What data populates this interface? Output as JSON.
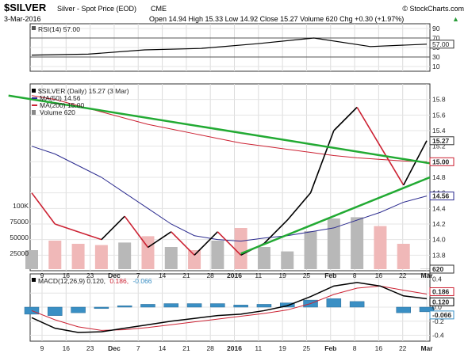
{
  "header": {
    "symbol": "$SILVER",
    "name": "Silver - Spot Price (EOD)",
    "exchange": "CME",
    "source": "© StockCharts.com",
    "date": "3-Mar-2016",
    "quote": "Open 14.94  High 15.33  Low 14.92  Close 15.27  Volume 620  Chg +0.30 (+1.97%)",
    "quote_up_arrow": "▲"
  },
  "chart_data": [
    {
      "type": "line",
      "panel": "rsi",
      "title": "RSI(14) 57.00",
      "ylim": [
        0,
        100
      ],
      "yticks": [
        10,
        30,
        50,
        70,
        90
      ],
      "reference_lines": [
        30,
        70
      ],
      "x": [
        "Dec 1",
        "Dec 15",
        "Jan 4",
        "Jan 19",
        "Feb 1",
        "Feb 12",
        "Feb 22",
        "Mar 3"
      ],
      "series": [
        {
          "name": "RSI(14)",
          "values": [
            34,
            36,
            45,
            48,
            58,
            70,
            52,
            57
          ]
        }
      ],
      "last_value_label": "57.00",
      "colors": {
        "line": "#000000",
        "ref": "#555555"
      }
    },
    {
      "type": "line",
      "panel": "price",
      "title": "$SILVER (Daily) 15.27 (3 Mar)",
      "ylim": [
        13.6,
        16.0
      ],
      "yticks": [
        13.8,
        14.0,
        14.2,
        14.4,
        14.6,
        14.8,
        15.0,
        15.2,
        15.4,
        15.6,
        15.8
      ],
      "legend": [
        {
          "name": "MA(50) 14.56",
          "color": "#2b2b8f"
        },
        {
          "name": "MA(200) 15.00",
          "color": "#cc2233"
        },
        {
          "name": "Volume 620",
          "color": "#888888"
        }
      ],
      "x": [
        "Nov 9",
        "Nov 16",
        "Nov 23",
        "Dec 1",
        "Dec 7",
        "Dec 14",
        "Dec 21",
        "Dec 28",
        "Jan 4",
        "Jan 11",
        "Jan 19",
        "Jan 25",
        "Feb 1",
        "Feb 8",
        "Feb 16",
        "Feb 22",
        "Feb 29",
        "Mar 3"
      ],
      "series": [
        {
          "name": "$SILVER",
          "values": [
            14.6,
            14.2,
            14.1,
            14.0,
            14.3,
            13.9,
            14.1,
            13.8,
            14.1,
            13.8,
            13.95,
            14.25,
            14.6,
            15.4,
            15.7,
            15.2,
            14.7,
            15.27
          ]
        },
        {
          "name": "MA(50)",
          "values": [
            15.2,
            15.1,
            14.95,
            14.8,
            14.6,
            14.4,
            14.2,
            14.05,
            14.0,
            13.98,
            14.02,
            14.05,
            14.1,
            14.15,
            14.25,
            14.35,
            14.48,
            14.56
          ]
        },
        {
          "name": "MA(200)",
          "values": [
            15.85,
            15.8,
            15.72,
            15.64,
            15.56,
            15.48,
            15.42,
            15.36,
            15.3,
            15.24,
            15.2,
            15.16,
            15.12,
            15.08,
            15.05,
            15.03,
            15.01,
            15.0
          ]
        }
      ],
      "volume": [
        30000,
        45000,
        40000,
        38000,
        42000,
        52000,
        35000,
        30000,
        45000,
        65000,
        35000,
        28000,
        60000,
        80000,
        82000,
        68000,
        40000,
        620
      ],
      "volume_ylim": [
        0,
        100000
      ],
      "volume_ticks": [
        "25000",
        "50000",
        "75000",
        "100K"
      ],
      "trendlines": [
        {
          "color": "#22aa33",
          "from": [
            "Jan 11",
            13.82
          ],
          "to": [
            "Mar 3",
            14.8
          ]
        },
        {
          "color": "#22aa33",
          "from": [
            "Feb 12",
            15.85
          ],
          "to": [
            "Mar 3",
            14.98
          ]
        }
      ],
      "value_labels": [
        {
          "text": "15.27",
          "kind": "close",
          "value": 15.27
        },
        {
          "text": "15.00",
          "kind": "ma200",
          "value": 15.0
        },
        {
          "text": "14.56",
          "kind": "ma50",
          "value": 14.56
        },
        {
          "text": "620",
          "kind": "volume",
          "value": 620
        }
      ],
      "colors": {
        "up": "#000000",
        "down": "#cc2233",
        "vol_up": "#b8b8b8",
        "vol_down": "#f0b8b8"
      }
    },
    {
      "type": "line",
      "panel": "macd",
      "title": "MACD(12,26,9) 0.120, 0.186, -0.066",
      "legend": [
        {
          "name": "MACD(12,26,9) 0.120,",
          "color": "#000000"
        },
        {
          "name": "0.186,",
          "color": "#cc2233"
        },
        {
          "name": "-0.066",
          "color": "#3a8fc4"
        }
      ],
      "ylim": [
        -0.45,
        0.45
      ],
      "yticks": [
        -0.4,
        -0.2,
        0.0,
        0.2,
        0.4
      ],
      "x": [
        "Nov 9",
        "Nov 16",
        "Nov 23",
        "Dec 1",
        "Dec 7",
        "Dec 14",
        "Dec 21",
        "Dec 28",
        "Jan 4",
        "Jan 11",
        "Jan 19",
        "Jan 25",
        "Feb 1",
        "Feb 8",
        "Feb 16",
        "Feb 22",
        "Feb 29",
        "Mar 3"
      ],
      "series": [
        {
          "name": "MACD",
          "values": [
            -0.15,
            -0.3,
            -0.36,
            -0.35,
            -0.3,
            -0.25,
            -0.2,
            -0.16,
            -0.12,
            -0.1,
            -0.05,
            0.02,
            0.15,
            0.3,
            0.35,
            0.3,
            0.16,
            0.12
          ]
        },
        {
          "name": "Signal",
          "values": [
            -0.05,
            -0.18,
            -0.28,
            -0.33,
            -0.32,
            -0.29,
            -0.25,
            -0.21,
            -0.17,
            -0.13,
            -0.09,
            -0.04,
            0.05,
            0.18,
            0.27,
            0.3,
            0.24,
            0.186
          ]
        },
        {
          "name": "Histogram",
          "values": [
            -0.1,
            -0.12,
            -0.08,
            -0.02,
            0.02,
            0.04,
            0.05,
            0.05,
            0.05,
            0.03,
            0.04,
            0.06,
            0.1,
            0.12,
            0.08,
            0.0,
            -0.08,
            -0.066
          ]
        }
      ],
      "value_labels": [
        "0.186",
        "0.120",
        "-0.066"
      ]
    }
  ],
  "x_axis_labels": [
    {
      "text": "9",
      "bold": false
    },
    {
      "text": "16",
      "bold": false
    },
    {
      "text": "23",
      "bold": false
    },
    {
      "text": "Dec",
      "bold": true
    },
    {
      "text": "7",
      "bold": false
    },
    {
      "text": "14",
      "bold": false
    },
    {
      "text": "21",
      "bold": false
    },
    {
      "text": "28",
      "bold": false
    },
    {
      "text": "2016",
      "bold": true
    },
    {
      "text": "11",
      "bold": false
    },
    {
      "text": "19",
      "bold": false
    },
    {
      "text": "25",
      "bold": false
    },
    {
      "text": "Feb",
      "bold": true
    },
    {
      "text": "8",
      "bold": false
    },
    {
      "text": "16",
      "bold": false
    },
    {
      "text": "22",
      "bold": false
    },
    {
      "text": "Mar",
      "bold": true
    }
  ]
}
